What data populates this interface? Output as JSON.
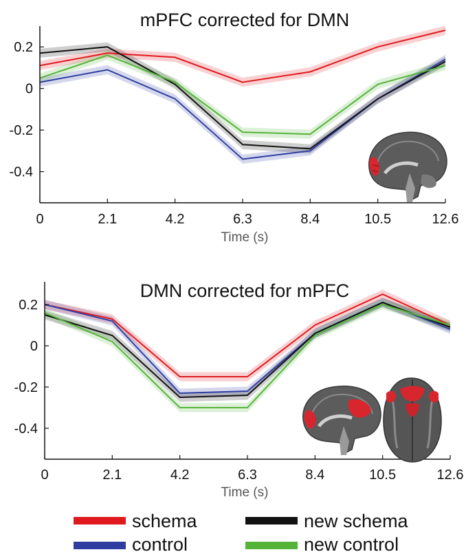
{
  "chart_data": [
    {
      "type": "line",
      "title": "mPFC corrected for DMN",
      "xlabel": "Time (s)",
      "ylabel": "",
      "x": [
        0,
        2.1,
        4.2,
        6.3,
        8.4,
        10.5,
        12.6
      ],
      "x_tick_labels": [
        "0",
        "2.1",
        "4.2",
        "6.3",
        "8.4",
        "10.5",
        "12.6"
      ],
      "y_ticks": [
        0.2,
        0,
        -0.2,
        -0.4
      ],
      "y_tick_labels": [
        "0.2",
        "0",
        "-0.2",
        "-0.4"
      ],
      "xlim": [
        0,
        12.6
      ],
      "ylim": [
        -0.55,
        0.3
      ],
      "grid": false,
      "shaded_error_band": true,
      "series": [
        {
          "name": "schema",
          "color": "#e0191e",
          "values": [
            0.11,
            0.17,
            0.15,
            0.03,
            0.08,
            0.2,
            0.28
          ],
          "err": 0.022
        },
        {
          "name": "control",
          "color": "#2e3ea0",
          "values": [
            0.03,
            0.09,
            -0.05,
            -0.34,
            -0.3,
            -0.05,
            0.14
          ],
          "err": 0.022
        },
        {
          "name": "new schema",
          "color": "#111111",
          "values": [
            0.17,
            0.2,
            0.02,
            -0.27,
            -0.29,
            -0.05,
            0.13
          ],
          "err": 0.022
        },
        {
          "name": "new control",
          "color": "#55b33a",
          "values": [
            0.05,
            0.16,
            0.03,
            -0.21,
            -0.22,
            0.02,
            0.11
          ],
          "err": 0.022
        }
      ]
    },
    {
      "type": "line",
      "title": "DMN corrected for mPFC",
      "xlabel": "Time (s)",
      "ylabel": "",
      "x": [
        0,
        2.1,
        4.2,
        6.3,
        8.4,
        10.5,
        12.6
      ],
      "x_tick_labels": [
        "0",
        "2.1",
        "4.2",
        "6.3",
        "8.4",
        "10.5",
        "12.6"
      ],
      "y_ticks": [
        0.2,
        0,
        -0.2,
        -0.4
      ],
      "y_tick_labels": [
        "0.2",
        "0",
        "-0.2",
        "-0.4"
      ],
      "xlim": [
        0,
        12.6
      ],
      "ylim": [
        -0.55,
        0.31
      ],
      "grid": false,
      "shaded_error_band": true,
      "series": [
        {
          "name": "schema",
          "color": "#e0191e",
          "values": [
            0.2,
            0.13,
            -0.15,
            -0.15,
            0.1,
            0.25,
            0.1
          ],
          "err": 0.022
        },
        {
          "name": "control",
          "color": "#2e3ea0",
          "values": [
            0.2,
            0.12,
            -0.23,
            -0.22,
            0.06,
            0.21,
            0.08
          ],
          "err": 0.022
        },
        {
          "name": "new schema",
          "color": "#111111",
          "values": [
            0.15,
            0.05,
            -0.25,
            -0.24,
            0.06,
            0.21,
            0.09
          ],
          "err": 0.022
        },
        {
          "name": "new control",
          "color": "#55b33a",
          "values": [
            0.16,
            0.02,
            -0.3,
            -0.3,
            0.05,
            0.2,
            0.1
          ],
          "err": 0.022
        }
      ]
    }
  ],
  "legend": {
    "placement": "bottom",
    "items": [
      {
        "label": "schema",
        "color": "#e0191e"
      },
      {
        "label": "new schema",
        "color": "#111111"
      },
      {
        "label": "control",
        "color": "#2e3ea0"
      },
      {
        "label": "new control",
        "color": "#55b33a"
      }
    ]
  },
  "insets": {
    "top": {
      "name": "brain-sagittal-mpfc-roi",
      "highlight_color": "#d8262f"
    },
    "bottom_left": {
      "name": "brain-sagittal-dmn-roi",
      "highlight_color": "#d8262f"
    },
    "bottom_right": {
      "name": "brain-axial-dmn-roi",
      "highlight_color": "#d8262f"
    }
  }
}
